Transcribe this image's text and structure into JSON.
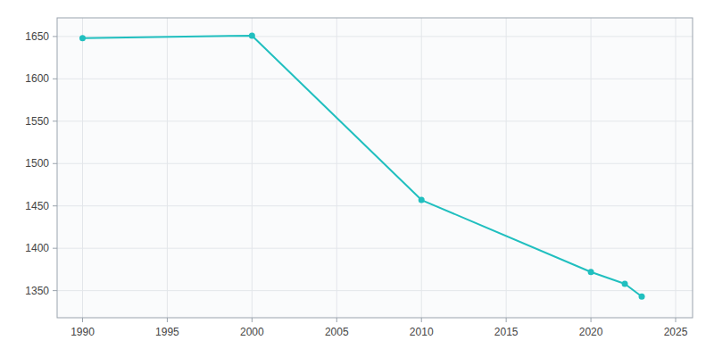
{
  "chart_data": {
    "type": "line",
    "x": [
      1990,
      2000,
      2010,
      2020,
      2022,
      2023
    ],
    "values": [
      1648,
      1651,
      1457,
      1372,
      1358,
      1343
    ],
    "color": "#20BFBF",
    "marker": "circle",
    "xlim": [
      1988.5,
      2026
    ],
    "ylim": [
      1318,
      1672
    ],
    "xticks": [
      1990,
      1995,
      2000,
      2005,
      2010,
      2015,
      2020,
      2025
    ],
    "yticks": [
      1350,
      1400,
      1450,
      1500,
      1550,
      1600,
      1650
    ],
    "grid": true
  }
}
